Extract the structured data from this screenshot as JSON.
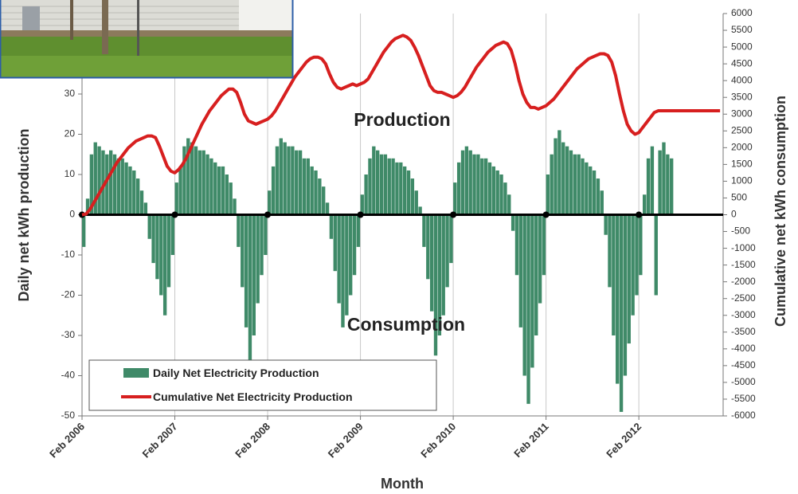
{
  "chart_data": {
    "type": "bar",
    "x_label": "Month",
    "y_label": "Daily net kWh production",
    "y2_label": "Cumulative net kWh consumption",
    "annotations": [
      "Production",
      "Consumption"
    ],
    "categories": [
      "Feb 2006",
      null,
      null,
      null,
      null,
      null,
      null,
      null,
      null,
      null,
      null,
      null,
      null,
      null,
      null,
      null,
      null,
      null,
      null,
      null,
      null,
      null,
      null,
      null,
      "Feb 2007",
      null,
      null,
      null,
      null,
      null,
      null,
      null,
      null,
      null,
      null,
      null,
      null,
      null,
      null,
      null,
      null,
      null,
      null,
      null,
      null,
      null,
      null,
      null,
      "Feb 2008",
      null,
      null,
      null,
      null,
      null,
      null,
      null,
      null,
      null,
      null,
      null,
      null,
      null,
      null,
      null,
      null,
      null,
      null,
      null,
      null,
      null,
      null,
      null,
      "Feb 2009",
      null,
      null,
      null,
      null,
      null,
      null,
      null,
      null,
      null,
      null,
      null,
      null,
      null,
      null,
      null,
      null,
      null,
      null,
      null,
      null,
      null,
      null,
      null,
      "Feb 2010",
      null,
      null,
      null,
      null,
      null,
      null,
      null,
      null,
      null,
      null,
      null,
      null,
      null,
      null,
      null,
      null,
      null,
      null,
      null,
      null,
      null,
      null,
      null,
      "Feb 2011",
      null,
      null,
      null,
      null,
      null,
      null,
      null,
      null,
      null,
      null,
      null,
      null,
      null,
      null,
      null,
      null,
      null,
      null,
      null,
      null,
      null,
      null,
      null,
      "Feb 2012",
      null,
      null,
      null,
      null,
      null,
      null,
      null,
      null,
      null,
      null,
      null,
      null,
      null,
      null,
      null,
      null,
      null,
      null,
      null,
      null,
      null
    ],
    "series": [
      {
        "name": "Daily Net Electricity Production",
        "type": "bar",
        "color": "#3f8a68",
        "axis": "y",
        "values": [
          -8,
          4,
          15,
          18,
          17,
          16,
          15,
          16,
          15,
          14,
          14,
          13,
          12,
          11,
          9,
          6,
          3,
          -6,
          -12,
          -16,
          -20,
          -25,
          -18,
          -10,
          8,
          12,
          17,
          19,
          18,
          17,
          16,
          16,
          15,
          14,
          13,
          12,
          12,
          10,
          8,
          4,
          -8,
          -18,
          -28,
          -37,
          -30,
          -22,
          -15,
          -10,
          6,
          12,
          17,
          19,
          18,
          17,
          17,
          16,
          16,
          14,
          14,
          12,
          11,
          9,
          7,
          3,
          -6,
          -14,
          -22,
          -28,
          -25,
          -20,
          -15,
          -8,
          5,
          10,
          14,
          17,
          16,
          15,
          15,
          14,
          14,
          13,
          13,
          12,
          11,
          9,
          6,
          2,
          -8,
          -16,
          -24,
          -35,
          -30,
          -25,
          -18,
          -12,
          8,
          13,
          16,
          17,
          16,
          15,
          15,
          14,
          14,
          13,
          12,
          11,
          10,
          8,
          5,
          -4,
          -15,
          -28,
          -40,
          -47,
          -38,
          -30,
          -22,
          -15,
          10,
          15,
          19,
          21,
          18,
          17,
          16,
          15,
          15,
          14,
          13,
          12,
          11,
          9,
          6,
          -5,
          -18,
          -30,
          -42,
          -49,
          -40,
          -32,
          -25,
          -20,
          -15,
          5,
          14,
          17,
          -20,
          16,
          18,
          15,
          14,
          null,
          null,
          null,
          null,
          null,
          null,
          null,
          null,
          null,
          null,
          null,
          null,
          null
        ]
      },
      {
        "name": "Cumulative Net Electricity Production",
        "type": "line",
        "color": "#d71f1f",
        "axis": "y2",
        "values": [
          0,
          20,
          150,
          350,
          550,
          750,
          950,
          1150,
          1350,
          1550,
          1700,
          1850,
          2000,
          2100,
          2200,
          2250,
          2300,
          2350,
          2350,
          2300,
          2050,
          1750,
          1450,
          1300,
          1250,
          1350,
          1500,
          1700,
          1950,
          2200,
          2450,
          2700,
          2900,
          3100,
          3250,
          3400,
          3550,
          3650,
          3750,
          3750,
          3650,
          3350,
          3000,
          2800,
          2750,
          2700,
          2750,
          2800,
          2850,
          2950,
          3100,
          3300,
          3500,
          3700,
          3900,
          4100,
          4250,
          4400,
          4550,
          4650,
          4700,
          4700,
          4650,
          4500,
          4200,
          3950,
          3800,
          3750,
          3800,
          3850,
          3900,
          3850,
          3900,
          3950,
          4050,
          4250,
          4450,
          4650,
          4850,
          5000,
          5150,
          5250,
          5300,
          5350,
          5300,
          5200,
          5000,
          4750,
          4450,
          4150,
          3850,
          3700,
          3650,
          3650,
          3600,
          3550,
          3500,
          3550,
          3650,
          3800,
          4000,
          4200,
          4400,
          4550,
          4700,
          4850,
          4950,
          5050,
          5100,
          5150,
          5100,
          4900,
          4500,
          4000,
          3600,
          3350,
          3200,
          3200,
          3150,
          3200,
          3250,
          3350,
          3450,
          3600,
          3750,
          3900,
          4050,
          4200,
          4350,
          4450,
          4550,
          4650,
          4700,
          4750,
          4800,
          4800,
          4750,
          4550,
          4150,
          3600,
          3100,
          2700,
          2500,
          2400,
          2450,
          2600,
          2750,
          2900,
          3050,
          3100,
          3100,
          3100,
          3100,
          3100,
          3100,
          3100,
          3100,
          3100,
          3100,
          3100,
          3100,
          3100,
          3100,
          3100,
          3100,
          3100
        ]
      }
    ],
    "ylim": [
      -50,
      50
    ],
    "yticks": [
      -50,
      -40,
      -30,
      -20,
      -10,
      0,
      10,
      20,
      30
    ],
    "y2lim": [
      -6000,
      6000
    ],
    "y2ticks": [
      -6000,
      -5500,
      -5000,
      -4500,
      -4000,
      -3500,
      -3000,
      -2500,
      -2000,
      -1500,
      -1000,
      -500,
      0,
      500,
      1000,
      1500,
      2000,
      2500,
      3000,
      3500,
      4000,
      4500,
      5000,
      5500,
      6000
    ],
    "grid": "x"
  }
}
